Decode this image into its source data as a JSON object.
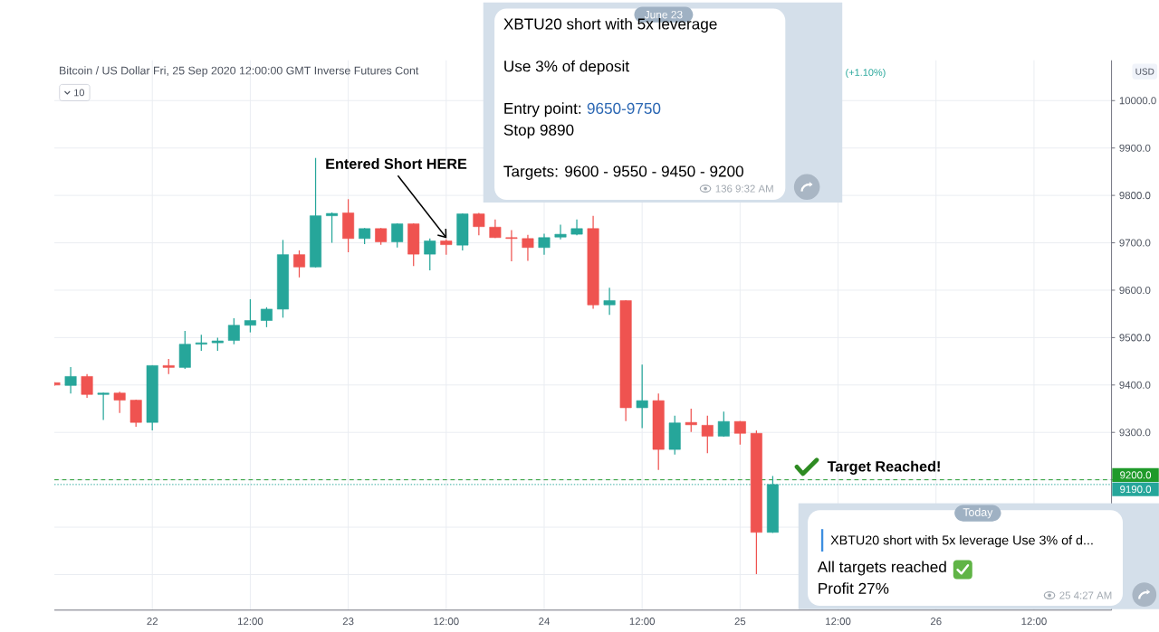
{
  "chart_data": {
    "type": "candlestick",
    "title": "Bitcoin / US Dollar Fri, 25 Sep 2020 12:00:00 GMT Inverse Futures Cont",
    "ylabel": "USD",
    "x": [
      "2020-06-21T12:00",
      "2020-06-21T14:00",
      "2020-06-21T16:00",
      "2020-06-21T18:00",
      "2020-06-21T20:00",
      "2020-06-21T22:00",
      "2020-06-22T00:00",
      "2020-06-22T02:00",
      "2020-06-22T04:00",
      "2020-06-22T06:00",
      "2020-06-22T08:00",
      "2020-06-22T10:00",
      "2020-06-22T12:00",
      "2020-06-22T14:00",
      "2020-06-22T16:00",
      "2020-06-22T18:00",
      "2020-06-22T20:00",
      "2020-06-22T22:00",
      "2020-06-23T00:00",
      "2020-06-23T02:00",
      "2020-06-23T04:00",
      "2020-06-23T06:00",
      "2020-06-23T08:00",
      "2020-06-23T10:00",
      "2020-06-23T12:00",
      "2020-06-23T14:00",
      "2020-06-23T16:00",
      "2020-06-23T18:00",
      "2020-06-23T20:00",
      "2020-06-23T22:00",
      "2020-06-24T00:00",
      "2020-06-24T02:00",
      "2020-06-24T04:00",
      "2020-06-24T06:00",
      "2020-06-24T08:00",
      "2020-06-24T10:00",
      "2020-06-24T12:00",
      "2020-06-24T14:00",
      "2020-06-24T16:00",
      "2020-06-24T18:00",
      "2020-06-24T20:00",
      "2020-06-24T22:00",
      "2020-06-25T00:00",
      "2020-06-25T02:00",
      "2020-06-25T04:00"
    ],
    "ohlc": [
      [
        9405,
        9406,
        9398,
        9400
      ],
      [
        9399,
        9438,
        9382,
        9418
      ],
      [
        9418,
        9423,
        9373,
        9380
      ],
      [
        9380,
        9384,
        9326,
        9383
      ],
      [
        9383,
        9386,
        9341,
        9368
      ],
      [
        9368,
        9369,
        9312,
        9321
      ],
      [
        9321,
        9441,
        9304,
        9441
      ],
      [
        9441,
        9455,
        9423,
        9437
      ],
      [
        9437,
        9514,
        9434,
        9486
      ],
      [
        9486,
        9506,
        9472,
        9489
      ],
      [
        9489,
        9500,
        9472,
        9493
      ],
      [
        9494,
        9541,
        9486,
        9526
      ],
      [
        9526,
        9581,
        9511,
        9536
      ],
      [
        9536,
        9564,
        9522,
        9560
      ],
      [
        9560,
        9706,
        9542,
        9675
      ],
      [
        9675,
        9684,
        9627,
        9649
      ],
      [
        9649,
        9879,
        9648,
        9757
      ],
      [
        9757,
        9764,
        9700,
        9762
      ],
      [
        9763,
        9792,
        9680,
        9709
      ],
      [
        9709,
        9731,
        9697,
        9730
      ],
      [
        9730,
        9731,
        9696,
        9702
      ],
      [
        9702,
        9741,
        9690,
        9740
      ],
      [
        9740,
        9741,
        9651,
        9676
      ],
      [
        9676,
        9709,
        9642,
        9704
      ],
      [
        9704,
        9707,
        9675,
        9696
      ],
      [
        9695,
        9762,
        9684,
        9761
      ],
      [
        9761,
        9763,
        9716,
        9734
      ],
      [
        9733,
        9749,
        9710,
        9711
      ],
      [
        9711,
        9727,
        9661,
        9709
      ],
      [
        9709,
        9717,
        9662,
        9690
      ],
      [
        9690,
        9719,
        9675,
        9711
      ],
      [
        9712,
        9738,
        9707,
        9718
      ],
      [
        9718,
        9749,
        9716,
        9730
      ],
      [
        9730,
        9757,
        9561,
        9569
      ],
      [
        9569,
        9605,
        9548,
        9578
      ],
      [
        9578,
        9579,
        9324,
        9352
      ],
      [
        9352,
        9443,
        9309,
        9367
      ],
      [
        9367,
        9382,
        9221,
        9264
      ],
      [
        9264,
        9335,
        9253,
        9320
      ],
      [
        9321,
        9350,
        9301,
        9316
      ],
      [
        9315,
        9335,
        9256,
        9292
      ],
      [
        9292,
        9344,
        9291,
        9323
      ],
      [
        9323,
        9324,
        9274,
        9298
      ],
      [
        9298,
        9304,
        9001,
        9089
      ],
      [
        9089,
        9208,
        9088,
        9190
      ]
    ],
    "colors": [
      "#ef5350",
      "#26a69a",
      "#ef5350",
      "#26a69a",
      "#ef5350",
      "#ef5350",
      "#26a69a",
      "#ef5350",
      "#26a69a",
      "#26a69a",
      "#26a69a",
      "#26a69a",
      "#26a69a",
      "#26a69a",
      "#26a69a",
      "#ef5350",
      "#26a69a",
      "#26a69a",
      "#ef5350",
      "#26a69a",
      "#ef5350",
      "#26a69a",
      "#ef5350",
      "#26a69a",
      "#ef5350",
      "#26a69a",
      "#ef5350",
      "#ef5350",
      "#ef5350",
      "#ef5350",
      "#26a69a",
      "#26a69a",
      "#26a69a",
      "#ef5350",
      "#26a69a",
      "#ef5350",
      "#26a69a",
      "#ef5350",
      "#26a69a",
      "#ef5350",
      "#ef5350",
      "#26a69a",
      "#ef5350",
      "#ef5350",
      "#26a69a"
    ],
    "xlim": [
      "2020-06-21T12:00",
      "2020-06-26T21:30"
    ],
    "ylim": [
      8925,
      10085
    ],
    "xticks": [
      {
        "value": "2020-06-22T00:00",
        "label": "22"
      },
      {
        "value": "2020-06-22T12:00",
        "label": "12:00"
      },
      {
        "value": "2020-06-23T00:00",
        "label": "23"
      },
      {
        "value": "2020-06-23T12:00",
        "label": "12:00"
      },
      {
        "value": "2020-06-24T00:00",
        "label": "24"
      },
      {
        "value": "2020-06-24T12:00",
        "label": "12:00"
      },
      {
        "value": "2020-06-25T00:00",
        "label": "25"
      },
      {
        "value": "2020-06-25T12:00",
        "label": "12:00"
      },
      {
        "value": "2020-06-26T00:00",
        "label": "26"
      },
      {
        "value": "2020-06-26T12:00",
        "label": "12:00"
      }
    ],
    "yticks": [
      {
        "value": 9000,
        "label": null
      },
      {
        "value": 9100,
        "label": null
      },
      {
        "value": 9200,
        "label": null
      },
      {
        "value": 9300,
        "label": "9300.0"
      },
      {
        "value": 9400,
        "label": "9400.0"
      },
      {
        "value": 9500,
        "label": "9500.0"
      },
      {
        "value": 9600,
        "label": "9600.0"
      },
      {
        "value": 9700,
        "label": "9700.0"
      },
      {
        "value": 9800,
        "label": "9800.0"
      },
      {
        "value": 9900,
        "label": "9900.0"
      },
      {
        "value": 10000,
        "label": "10000.0"
      }
    ],
    "grid": true,
    "ref_lines": [
      {
        "axis": "y",
        "value": 9200,
        "label": "9200.0",
        "color": "#1f9a2a",
        "line_style": "dashed"
      },
      {
        "axis": "y",
        "value": 9190,
        "label": "9190.0",
        "color": "#26a69a",
        "line_style": "dotted"
      }
    ],
    "annotations": [
      {
        "text": "Entered Short HERE",
        "x": "2020-06-23T12:00",
        "y": 9707
      },
      {
        "text": "Target Reached!",
        "x": "2020-06-25T06:00",
        "y": 9200
      },
      "10",
      "(+1.10%)",
      "June 23",
      "XBTU20 short with 5x leverage",
      "Use 3% of deposit",
      "Entry point:",
      "9650-9750",
      "Stop 9890",
      "Targets: 9600 - 9550 - 9450 - 9200",
      "136 9:32 AM",
      "Today",
      "XBTU20 short with 5x leverage Use 3% of d...",
      "All targets reached",
      "Profit 27%",
      "25 4:27 AM"
    ]
  }
}
